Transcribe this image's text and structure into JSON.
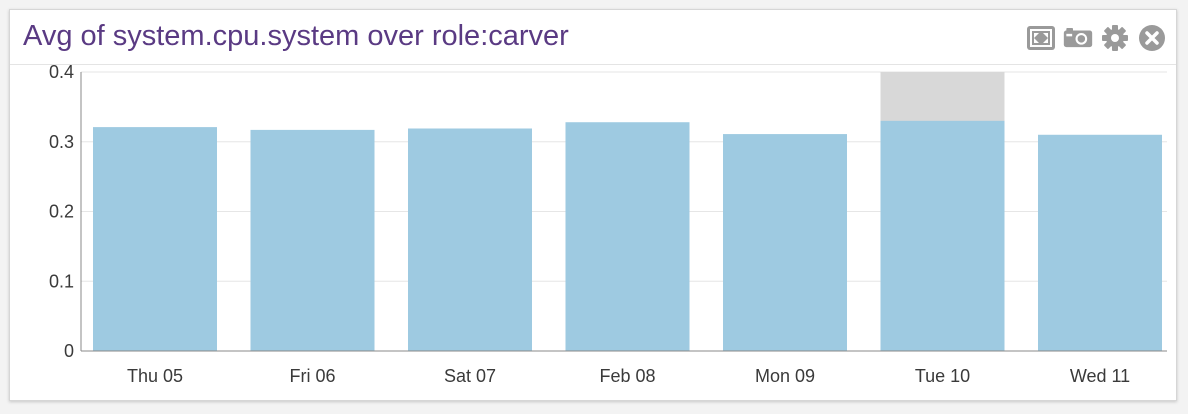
{
  "widget": {
    "title": "Avg of system.cpu.system over role:carver",
    "toolbar": [
      {
        "icon": "fullscreen-icon"
      },
      {
        "icon": "camera-icon"
      },
      {
        "icon": "gear-icon"
      },
      {
        "icon": "close-icon"
      }
    ]
  },
  "colors": {
    "bar": "#9ecae1",
    "highlight": "#d8d8d8",
    "grid": "#e6e6e6",
    "axis": "#888888",
    "title": "#5a3a83",
    "icon": "#9a9a9a"
  },
  "chart_data": {
    "type": "bar",
    "title": "Avg of system.cpu.system over role:carver",
    "categories": [
      "Thu 05",
      "Fri 06",
      "Sat 07",
      "Feb 08",
      "Mon 09",
      "Tue 10",
      "Wed 11"
    ],
    "values": [
      0.321,
      0.317,
      0.319,
      0.328,
      0.311,
      0.33,
      0.31
    ],
    "ylim": [
      0,
      0.4
    ],
    "yticks": [
      "0",
      "0.1",
      "0.2",
      "0.3",
      "0.4"
    ],
    "grid": true,
    "hover_index": 5
  }
}
